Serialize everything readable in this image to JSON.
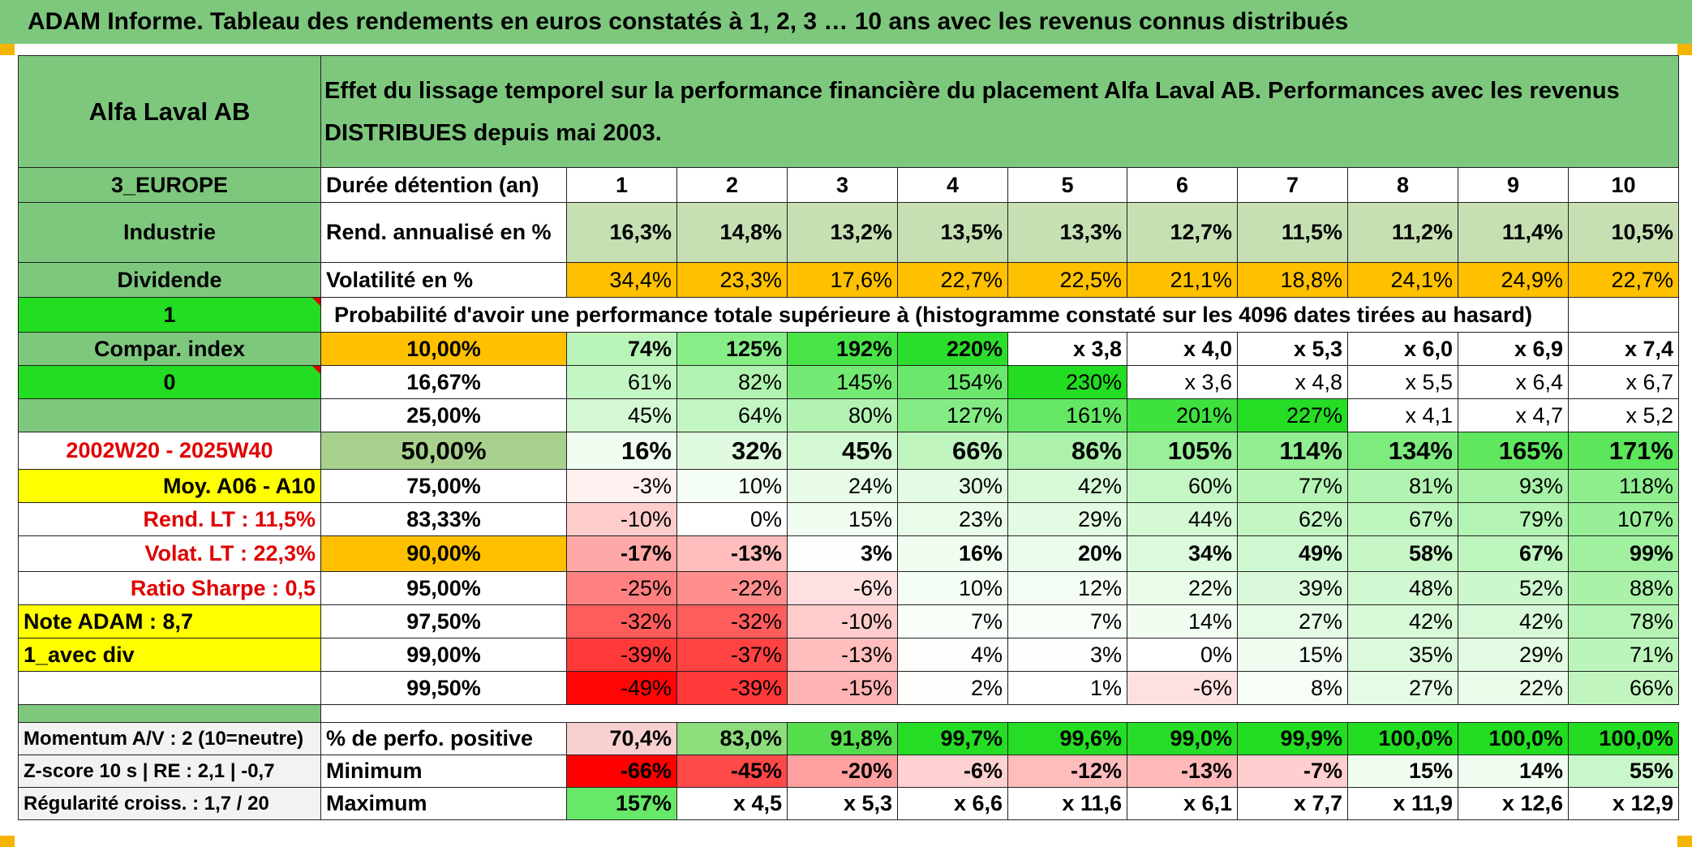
{
  "header": {
    "title": "ADAM Informe. Tableau des rendements en euros constatés à 1, 2, 3 … 10 ans avec les revenus connus distribués"
  },
  "fund": {
    "name": "Alfa Laval AB",
    "description": "Effet du lissage temporel sur la performance financière du placement Alfa Laval AB. Performances avec les revenus DISTRIBUES depuis mai 2003."
  },
  "left_panel": {
    "region": "3_EUROPE",
    "sector": "Industrie",
    "income_type": "Dividende",
    "input_1": "1",
    "compar_index": "Compar. index",
    "input_0": "0",
    "period": "2002W20 - 2025W40",
    "moy": "Moy. A06 - A10",
    "rend_lt": "Rend. LT :    11,5%",
    "volat_lt": "Volat. LT :    22,3%",
    "sharpe": "Ratio Sharpe :    0,5",
    "note": "Note ADAM : 8,7",
    "avec_div": "1_avec div"
  },
  "summary_rows": {
    "duration_label": "Durée détention (an)",
    "years": [
      "1",
      "2",
      "3",
      "4",
      "5",
      "6",
      "7",
      "8",
      "9",
      "10"
    ],
    "rend_label": "Rend. annualisé en %",
    "rend": [
      "16,3%",
      "14,8%",
      "13,2%",
      "13,5%",
      "13,3%",
      "12,7%",
      "11,5%",
      "11,2%",
      "11,4%",
      "10,5%"
    ],
    "vol_label": "Volatilité en %",
    "vol": [
      "34,4%",
      "23,3%",
      "17,6%",
      "22,7%",
      "22,5%",
      "21,1%",
      "18,8%",
      "24,1%",
      "24,9%",
      "22,7%"
    ]
  },
  "probability_title": "Probabilité d'avoir une performance totale supérieure à (histogramme constaté sur les 4096 dates tirées au hasard)",
  "probability_rows": [
    {
      "p": "10,00%",
      "v": [
        "74%",
        "125%",
        "192%",
        "220%",
        "x 3,8",
        "x 4,0",
        "x 5,3",
        "x 6,0",
        "x 6,9",
        "x 7,4"
      ]
    },
    {
      "p": "16,67%",
      "v": [
        "61%",
        "82%",
        "145%",
        "154%",
        "230%",
        "x 3,6",
        "x 4,8",
        "x 5,5",
        "x 6,4",
        "x 6,7"
      ]
    },
    {
      "p": "25,00%",
      "v": [
        "45%",
        "64%",
        "80%",
        "127%",
        "161%",
        "201%",
        "227%",
        "x 4,1",
        "x 4,7",
        "x 5,2"
      ]
    },
    {
      "p": "50,00%",
      "v": [
        "16%",
        "32%",
        "45%",
        "66%",
        "86%",
        "105%",
        "114%",
        "134%",
        "165%",
        "171%"
      ]
    },
    {
      "p": "75,00%",
      "v": [
        "-3%",
        "10%",
        "24%",
        "30%",
        "42%",
        "60%",
        "77%",
        "81%",
        "93%",
        "118%"
      ]
    },
    {
      "p": "83,33%",
      "v": [
        "-10%",
        "0%",
        "15%",
        "23%",
        "29%",
        "44%",
        "62%",
        "67%",
        "79%",
        "107%"
      ]
    },
    {
      "p": "90,00%",
      "v": [
        "-17%",
        "-13%",
        "3%",
        "16%",
        "20%",
        "34%",
        "49%",
        "58%",
        "67%",
        "99%"
      ]
    },
    {
      "p": "95,00%",
      "v": [
        "-25%",
        "-22%",
        "-6%",
        "10%",
        "12%",
        "22%",
        "39%",
        "48%",
        "52%",
        "88%"
      ]
    },
    {
      "p": "97,50%",
      "v": [
        "-32%",
        "-32%",
        "-10%",
        "7%",
        "7%",
        "14%",
        "27%",
        "42%",
        "42%",
        "78%"
      ]
    },
    {
      "p": "99,00%",
      "v": [
        "-39%",
        "-37%",
        "-13%",
        "4%",
        "3%",
        "0%",
        "15%",
        "35%",
        "29%",
        "71%"
      ]
    },
    {
      "p": "99,50%",
      "v": [
        "-49%",
        "-39%",
        "-15%",
        "2%",
        "1%",
        "-6%",
        "8%",
        "27%",
        "22%",
        "66%"
      ]
    }
  ],
  "bottom": {
    "momentum": "Momentum A/V : 2 (10=neutre)",
    "zscore": "Z-score 10 s | RE : 2,1 | -0,7",
    "regularite": "Régularité croiss. : 1,7 / 20",
    "pos_label": "% de perfo. positive",
    "pos": [
      "70,4%",
      "83,0%",
      "91,8%",
      "99,7%",
      "99,6%",
      "99,0%",
      "99,9%",
      "100,0%",
      "100,0%",
      "100,0%"
    ],
    "min_label": "Minimum",
    "min": [
      "-66%",
      "-45%",
      "-20%",
      "-6%",
      "-12%",
      "-13%",
      "-7%",
      "15%",
      "14%",
      "55%"
    ],
    "max_label": "Maximum",
    "max": [
      "157%",
      "x 4,5",
      "x 5,3",
      "x 6,6",
      "x 11,6",
      "x 6,1",
      "x 7,7",
      "x 11,9",
      "x 12,6",
      "x 12,9"
    ]
  },
  "colors": {
    "header_green": "#7ec87e",
    "lime": "#22dd22",
    "yellow": "#ffff00",
    "orange": "#ffc000",
    "positive_max": "#00cc00",
    "negative_max": "#ff0000",
    "label_red": "#e00000"
  }
}
